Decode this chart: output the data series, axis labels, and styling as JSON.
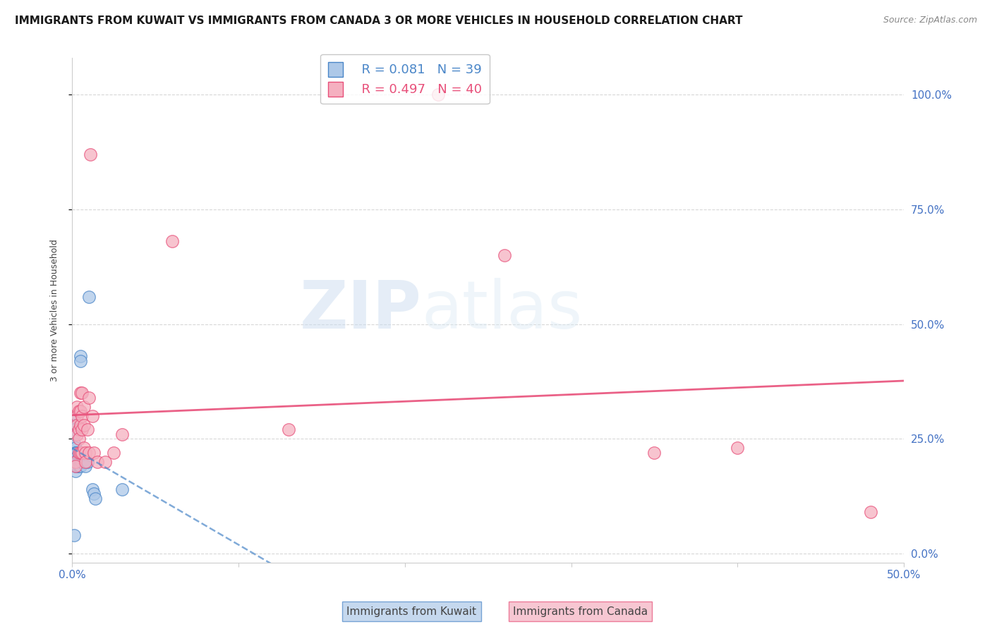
{
  "title": "IMMIGRANTS FROM KUWAIT VS IMMIGRANTS FROM CANADA 3 OR MORE VEHICLES IN HOUSEHOLD CORRELATION CHART",
  "source": "Source: ZipAtlas.com",
  "ylabel": "3 or more Vehicles in Household",
  "xlim": [
    0.0,
    0.5
  ],
  "ylim": [
    -0.02,
    1.08
  ],
  "kuwait_R": 0.081,
  "kuwait_N": 39,
  "canada_R": 0.497,
  "canada_N": 40,
  "kuwait_color": "#adc8e8",
  "canada_color": "#f5b0c0",
  "kuwait_line_color": "#4a86c8",
  "canada_line_color": "#e8507a",
  "kuwait_scatter": [
    [
      0.001,
      0.29
    ],
    [
      0.001,
      0.28
    ],
    [
      0.001,
      0.27
    ],
    [
      0.001,
      0.26
    ],
    [
      0.001,
      0.24
    ],
    [
      0.002,
      0.23
    ],
    [
      0.002,
      0.22
    ],
    [
      0.002,
      0.22
    ],
    [
      0.002,
      0.21
    ],
    [
      0.002,
      0.2
    ],
    [
      0.002,
      0.2
    ],
    [
      0.002,
      0.19
    ],
    [
      0.002,
      0.19
    ],
    [
      0.002,
      0.18
    ],
    [
      0.003,
      0.22
    ],
    [
      0.003,
      0.21
    ],
    [
      0.003,
      0.2
    ],
    [
      0.003,
      0.2
    ],
    [
      0.003,
      0.19
    ],
    [
      0.003,
      0.19
    ],
    [
      0.004,
      0.21
    ],
    [
      0.004,
      0.2
    ],
    [
      0.004,
      0.2
    ],
    [
      0.004,
      0.19
    ],
    [
      0.005,
      0.43
    ],
    [
      0.005,
      0.42
    ],
    [
      0.005,
      0.2
    ],
    [
      0.005,
      0.19
    ],
    [
      0.006,
      0.2
    ],
    [
      0.007,
      0.2
    ],
    [
      0.008,
      0.2
    ],
    [
      0.008,
      0.19
    ],
    [
      0.009,
      0.2
    ],
    [
      0.01,
      0.56
    ],
    [
      0.012,
      0.14
    ],
    [
      0.013,
      0.13
    ],
    [
      0.014,
      0.12
    ],
    [
      0.03,
      0.14
    ],
    [
      0.001,
      0.04
    ]
  ],
  "canada_scatter": [
    [
      0.002,
      0.2
    ],
    [
      0.002,
      0.19
    ],
    [
      0.003,
      0.32
    ],
    [
      0.003,
      0.3
    ],
    [
      0.003,
      0.28
    ],
    [
      0.003,
      0.26
    ],
    [
      0.004,
      0.31
    ],
    [
      0.004,
      0.27
    ],
    [
      0.004,
      0.25
    ],
    [
      0.004,
      0.22
    ],
    [
      0.005,
      0.35
    ],
    [
      0.005,
      0.31
    ],
    [
      0.005,
      0.28
    ],
    [
      0.005,
      0.22
    ],
    [
      0.006,
      0.35
    ],
    [
      0.006,
      0.3
    ],
    [
      0.006,
      0.27
    ],
    [
      0.006,
      0.22
    ],
    [
      0.007,
      0.32
    ],
    [
      0.007,
      0.28
    ],
    [
      0.007,
      0.23
    ],
    [
      0.008,
      0.22
    ],
    [
      0.008,
      0.2
    ],
    [
      0.009,
      0.27
    ],
    [
      0.01,
      0.34
    ],
    [
      0.01,
      0.22
    ],
    [
      0.011,
      0.87
    ],
    [
      0.012,
      0.3
    ],
    [
      0.013,
      0.22
    ],
    [
      0.015,
      0.2
    ],
    [
      0.02,
      0.2
    ],
    [
      0.025,
      0.22
    ],
    [
      0.03,
      0.26
    ],
    [
      0.06,
      0.68
    ],
    [
      0.13,
      0.27
    ],
    [
      0.22,
      1.0
    ],
    [
      0.26,
      0.65
    ],
    [
      0.35,
      0.22
    ],
    [
      0.4,
      0.23
    ],
    [
      0.48,
      0.09
    ]
  ],
  "watermark_zip": "ZIP",
  "watermark_atlas": "atlas",
  "background_color": "#ffffff",
  "grid_color": "#d8d8d8",
  "tick_label_color": "#4472c4",
  "title_fontsize": 11,
  "axis_label_fontsize": 9,
  "legend_fontsize": 13
}
